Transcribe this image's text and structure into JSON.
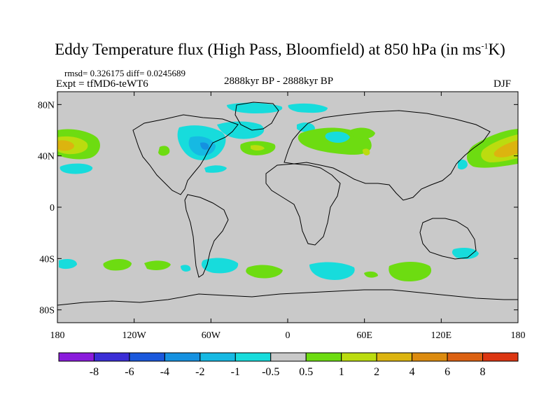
{
  "title": {
    "main": "Eddy Temperature flux (High Pass, Bloomfield) at 850 hPa (in ms",
    "unit_sup": "-1",
    "unit_end": "K)"
  },
  "stats": {
    "line": "rmsd= 0.326175 diff= 0.0245689"
  },
  "experiment": "Expt = tfMD6-teWT6",
  "period": "2888kyr BP - 2888kyr BP",
  "season": "DJF",
  "axes": {
    "lat_labels": [
      "80N",
      "40N",
      "0",
      "40S",
      "80S"
    ],
    "lat_values": [
      80,
      40,
      0,
      -40,
      -80
    ],
    "lon_labels": [
      "180",
      "120W",
      "60W",
      "0",
      "60E",
      "120E",
      "180"
    ],
    "lon_values": [
      -180,
      -120,
      -60,
      0,
      60,
      120,
      180
    ]
  },
  "colorbar": {
    "labels": [
      "-8",
      "-6",
      "-4",
      "-2",
      "-1",
      "-0.5",
      "0.5",
      "1",
      "2",
      "4",
      "6",
      "8"
    ],
    "colors": [
      "#8a1bdc",
      "#3b2ed6",
      "#1a58dc",
      "#1591e0",
      "#16b9e3",
      "#17dcdc",
      "#c9c9c9",
      "#6ddc11",
      "#bbdc0f",
      "#dcb40f",
      "#dc8b0f",
      "#dc6112",
      "#dc3612"
    ]
  },
  "colors": {
    "ocean": "#c9c9c9",
    "cyan": "#17dcdc",
    "cyan_dark": "#16b9e3",
    "blue": "#1591e0",
    "green": "#6ddc11",
    "yellow": "#bbdc0f",
    "orange": "#dcb40f"
  }
}
